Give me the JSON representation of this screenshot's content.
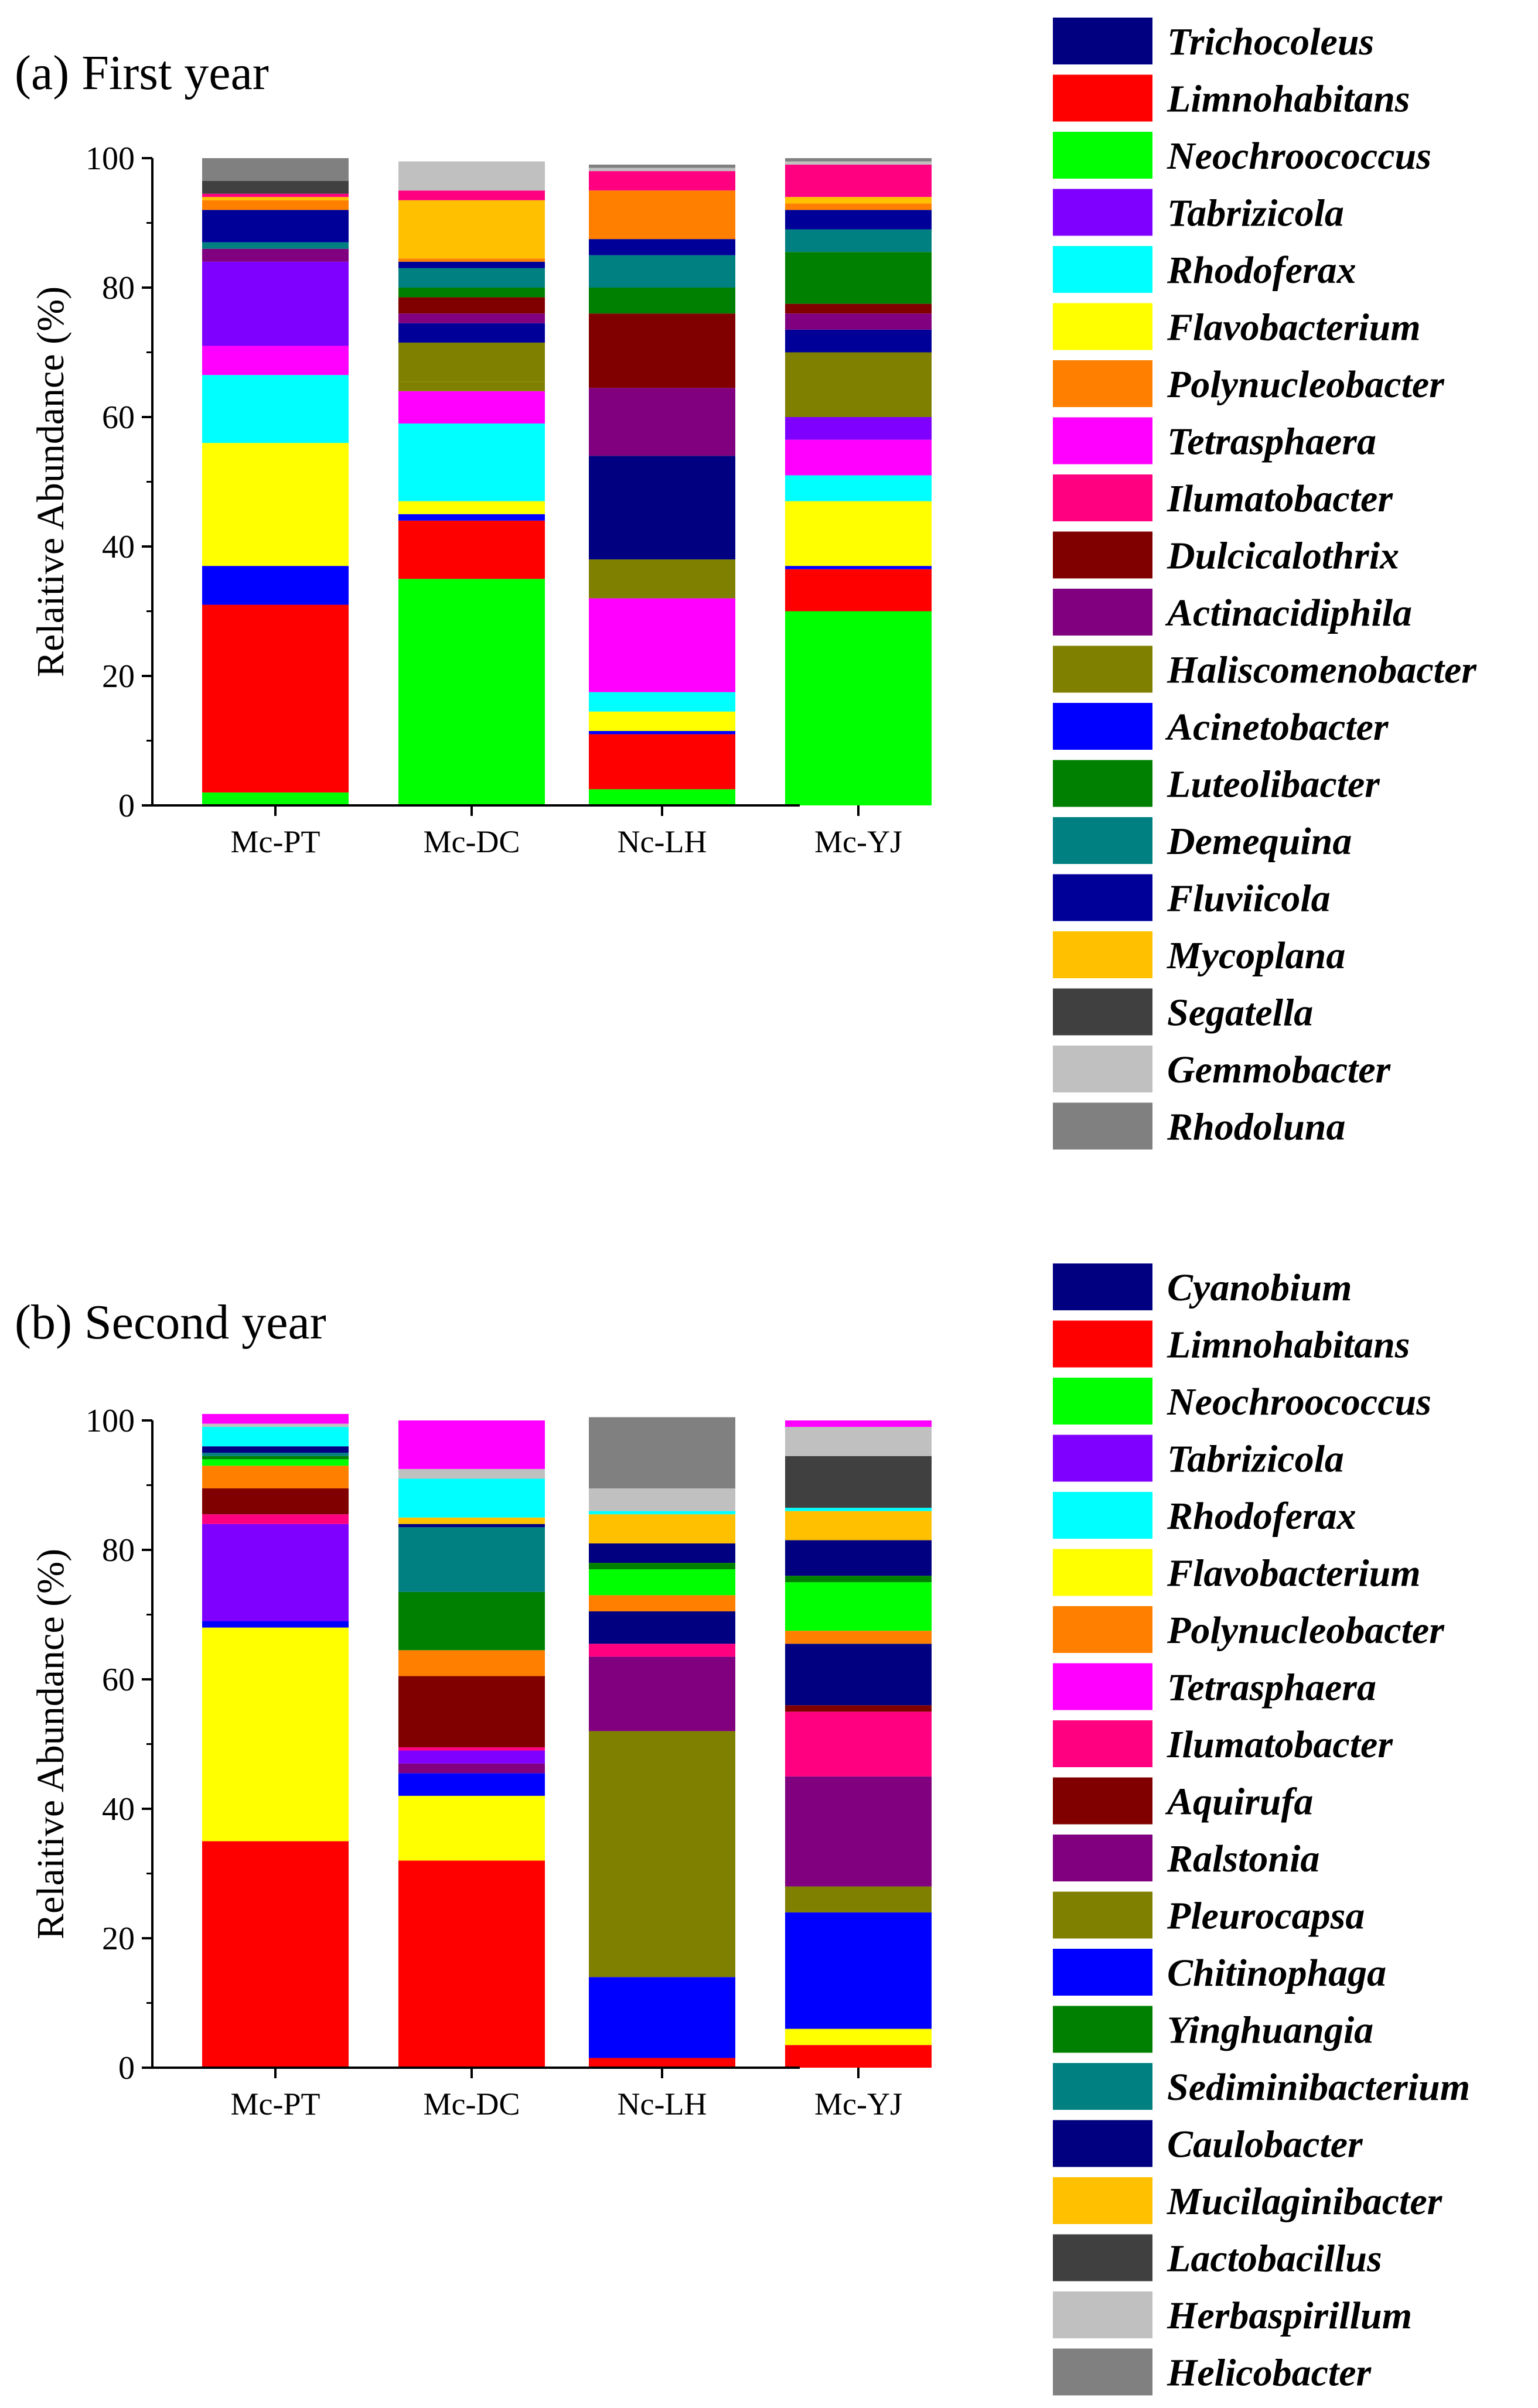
{
  "chart_data": [
    {
      "type": "bar",
      "stacked": true,
      "title": "(a)  First year",
      "xlabel": "",
      "ylabel": "Relaitive Abundance (%)",
      "ylim": [
        0,
        100
      ],
      "yticks": [
        0,
        20,
        40,
        60,
        80,
        100
      ],
      "categories": [
        "Mc-PT",
        "Mc-DC",
        "Nc-LH",
        "Mc-YJ"
      ],
      "series": [
        {
          "name": "Neochroococcus",
          "color": "#00ff00",
          "values": [
            2,
            35,
            2.5,
            30
          ]
        },
        {
          "name": "Limnohabitans",
          "color": "#ff0000",
          "values": [
            29,
            9,
            8.5,
            6.5
          ]
        },
        {
          "name": "Acinetobacter",
          "color": "#0000ff",
          "values": [
            6,
            1,
            0.5,
            0.5
          ]
        },
        {
          "name": "Flavobacterium",
          "color": "#ffff00",
          "values": [
            19,
            2,
            3,
            10
          ]
        },
        {
          "name": "Rhodoferax",
          "color": "#00ffff",
          "values": [
            10.5,
            12,
            3,
            4
          ]
        },
        {
          "name": "Tetrasphaera",
          "color": "#ff00ff",
          "values": [
            4.5,
            5,
            14.5,
            5.5
          ]
        },
        {
          "name": "Haliscomenobacter",
          "color": "#808000",
          "values": [
            0,
            1.5,
            6,
            0
          ]
        },
        {
          "name": "Trichocoleus",
          "color": "#000080",
          "values": [
            0,
            0,
            16,
            0
          ]
        },
        {
          "name": "Tabrizicola",
          "color": "#8000ff",
          "values": [
            13,
            0,
            0,
            3.5
          ]
        },
        {
          "name": "Actinacidiphila",
          "color": "#800080",
          "values": [
            0,
            0,
            10.5,
            0
          ]
        },
        {
          "name": "Haliscomenobacter",
          "color": "#808000",
          "values": [
            0,
            6,
            0,
            10
          ]
        },
        {
          "name": "Fluviicola",
          "color": "#000099",
          "values": [
            0,
            3,
            0,
            3.5
          ]
        },
        {
          "name": "Actinacidiphila",
          "color": "#800080",
          "values": [
            2,
            1.5,
            0,
            2.5
          ]
        },
        {
          "name": "Dulcicalothrix",
          "color": "#800000",
          "values": [
            0,
            2.5,
            11.5,
            1.5
          ]
        },
        {
          "name": "Luteolibacter",
          "color": "#008000",
          "values": [
            0,
            1.5,
            4,
            8
          ]
        },
        {
          "name": "Demequina",
          "color": "#008080",
          "values": [
            1,
            3,
            5,
            3.5
          ]
        },
        {
          "name": "Fluviicola",
          "color": "#000099",
          "values": [
            5,
            1,
            2.5,
            3
          ]
        },
        {
          "name": "Polynucleobacter",
          "color": "#ff8000",
          "values": [
            1.5,
            0.5,
            7.5,
            1
          ]
        },
        {
          "name": "Mycoplana",
          "color": "#ffc000",
          "values": [
            0.5,
            9,
            0,
            1
          ]
        },
        {
          "name": "Ilumatobacter",
          "color": "#ff0080",
          "values": [
            0.5,
            1.5,
            3,
            5
          ]
        },
        {
          "name": "Segatella",
          "color": "#404040",
          "values": [
            2,
            0,
            0,
            0
          ]
        },
        {
          "name": "Gemmobacter",
          "color": "#c0c0c0",
          "values": [
            0,
            4.5,
            0.5,
            0.5
          ]
        },
        {
          "name": "Rhodoluna",
          "color": "#808080",
          "values": [
            3.5,
            0,
            0.5,
            0.5
          ]
        }
      ],
      "legend": [
        {
          "name": "Trichocoleus",
          "color": "#000080"
        },
        {
          "name": "Limnohabitans",
          "color": "#ff0000"
        },
        {
          "name": "Neochroococcus",
          "color": "#00ff00"
        },
        {
          "name": "Tabrizicola",
          "color": "#8000ff"
        },
        {
          "name": "Rhodoferax",
          "color": "#00ffff"
        },
        {
          "name": "Flavobacterium",
          "color": "#ffff00"
        },
        {
          "name": "Polynucleobacter",
          "color": "#ff8000"
        },
        {
          "name": "Tetrasphaera",
          "color": "#ff00ff"
        },
        {
          "name": "Ilumatobacter",
          "color": "#ff0080"
        },
        {
          "name": "Dulcicalothrix",
          "color": "#800000"
        },
        {
          "name": "Actinacidiphila",
          "color": "#800080"
        },
        {
          "name": "Haliscomenobacter",
          "color": "#808000"
        },
        {
          "name": "Acinetobacter",
          "color": "#0000ff"
        },
        {
          "name": "Luteolibacter",
          "color": "#008000"
        },
        {
          "name": "Demequina",
          "color": "#008080"
        },
        {
          "name": "Fluviicola",
          "color": "#000099"
        },
        {
          "name": "Mycoplana",
          "color": "#ffc000"
        },
        {
          "name": "Segatella",
          "color": "#404040"
        },
        {
          "name": "Gemmobacter",
          "color": "#c0c0c0"
        },
        {
          "name": "Rhodoluna",
          "color": "#808080"
        }
      ]
    },
    {
      "type": "bar",
      "stacked": true,
      "title": "(b)  Second year",
      "xlabel": "",
      "ylabel": "Relaitive Abundance (%)",
      "ylim": [
        0,
        100
      ],
      "yticks": [
        0,
        20,
        40,
        60,
        80,
        100
      ],
      "categories": [
        "Mc-PT",
        "Mc-DC",
        "Nc-LH",
        "Mc-YJ"
      ],
      "series": [
        {
          "name": "Limnohabitans",
          "color": "#ff0000",
          "values": [
            35,
            32,
            1.5,
            3.5
          ]
        },
        {
          "name": "Flavobacterium",
          "color": "#ffff00",
          "values": [
            33,
            10,
            0,
            2.5
          ]
        },
        {
          "name": "Chitinophaga",
          "color": "#0000ff",
          "values": [
            1,
            3.5,
            12.5,
            18
          ]
        },
        {
          "name": "Pleurocapsa",
          "color": "#808000",
          "values": [
            0,
            0,
            38,
            4
          ]
        },
        {
          "name": "Ralstonia",
          "color": "#800080",
          "values": [
            0,
            1.5,
            11.5,
            17
          ]
        },
        {
          "name": "Tabrizicola",
          "color": "#8000ff",
          "values": [
            15,
            2,
            0,
            0
          ]
        },
        {
          "name": "Ilumatobacter",
          "color": "#ff0080",
          "values": [
            1.5,
            0.5,
            2,
            10
          ]
        },
        {
          "name": "Aquirufa",
          "color": "#800000",
          "values": [
            4,
            11,
            0,
            1
          ]
        },
        {
          "name": "Caulobacter",
          "color": "#000080",
          "values": [
            0,
            0,
            5,
            9.5
          ]
        },
        {
          "name": "Polynucleobacter",
          "color": "#ff8000",
          "values": [
            3.5,
            4,
            2.5,
            2
          ]
        },
        {
          "name": "Neochroococcus",
          "color": "#00ff00",
          "values": [
            1,
            0,
            4,
            7.5
          ]
        },
        {
          "name": "Yinghuangia",
          "color": "#008000",
          "values": [
            0.5,
            9,
            1,
            1
          ]
        },
        {
          "name": "Sediminibacterium",
          "color": "#008080",
          "values": [
            0.5,
            10,
            0,
            0
          ]
        },
        {
          "name": "Caulobacter",
          "color": "#000080",
          "values": [
            1,
            0.5,
            3,
            5.5
          ]
        },
        {
          "name": "Mucilaginibacter",
          "color": "#ffc000",
          "values": [
            0,
            1,
            4.5,
            4.5
          ]
        },
        {
          "name": "Rhodoferax",
          "color": "#00ffff",
          "values": [
            3,
            6,
            0.5,
            0.5
          ]
        },
        {
          "name": "Lactobacillus",
          "color": "#404040",
          "values": [
            0,
            0,
            0,
            8
          ]
        },
        {
          "name": "Herbaspirillum",
          "color": "#c0c0c0",
          "values": [
            0.5,
            1.5,
            3.5,
            4.5
          ]
        },
        {
          "name": "Tetrasphaera",
          "color": "#ff00ff",
          "values": [
            1.5,
            7.5,
            0,
            1
          ]
        },
        {
          "name": "Helicobacter",
          "color": "#808080",
          "values": [
            0,
            0,
            11,
            0
          ]
        }
      ],
      "legend": [
        {
          "name": "Cyanobium",
          "color": "#000080"
        },
        {
          "name": "Limnohabitans",
          "color": "#ff0000"
        },
        {
          "name": "Neochroococcus",
          "color": "#00ff00"
        },
        {
          "name": "Tabrizicola",
          "color": "#8000ff"
        },
        {
          "name": "Rhodoferax",
          "color": "#00ffff"
        },
        {
          "name": "Flavobacterium",
          "color": "#ffff00"
        },
        {
          "name": "Polynucleobacter",
          "color": "#ff8000"
        },
        {
          "name": "Tetrasphaera",
          "color": "#ff00ff"
        },
        {
          "name": "Ilumatobacter",
          "color": "#ff0080"
        },
        {
          "name": "Aquirufa",
          "color": "#800000"
        },
        {
          "name": "Ralstonia",
          "color": "#800080"
        },
        {
          "name": "Pleurocapsa",
          "color": "#808000"
        },
        {
          "name": "Chitinophaga",
          "color": "#0000ff"
        },
        {
          "name": "Yinghuangia",
          "color": "#008000"
        },
        {
          "name": "Sediminibacterium",
          "color": "#008080"
        },
        {
          "name": "Caulobacter",
          "color": "#000080"
        },
        {
          "name": "Mucilaginibacter",
          "color": "#ffc000"
        },
        {
          "name": "Lactobacillus",
          "color": "#404040"
        },
        {
          "name": "Herbaspirillum",
          "color": "#c0c0c0"
        },
        {
          "name": "Helicobacter",
          "color": "#808080"
        }
      ]
    }
  ]
}
